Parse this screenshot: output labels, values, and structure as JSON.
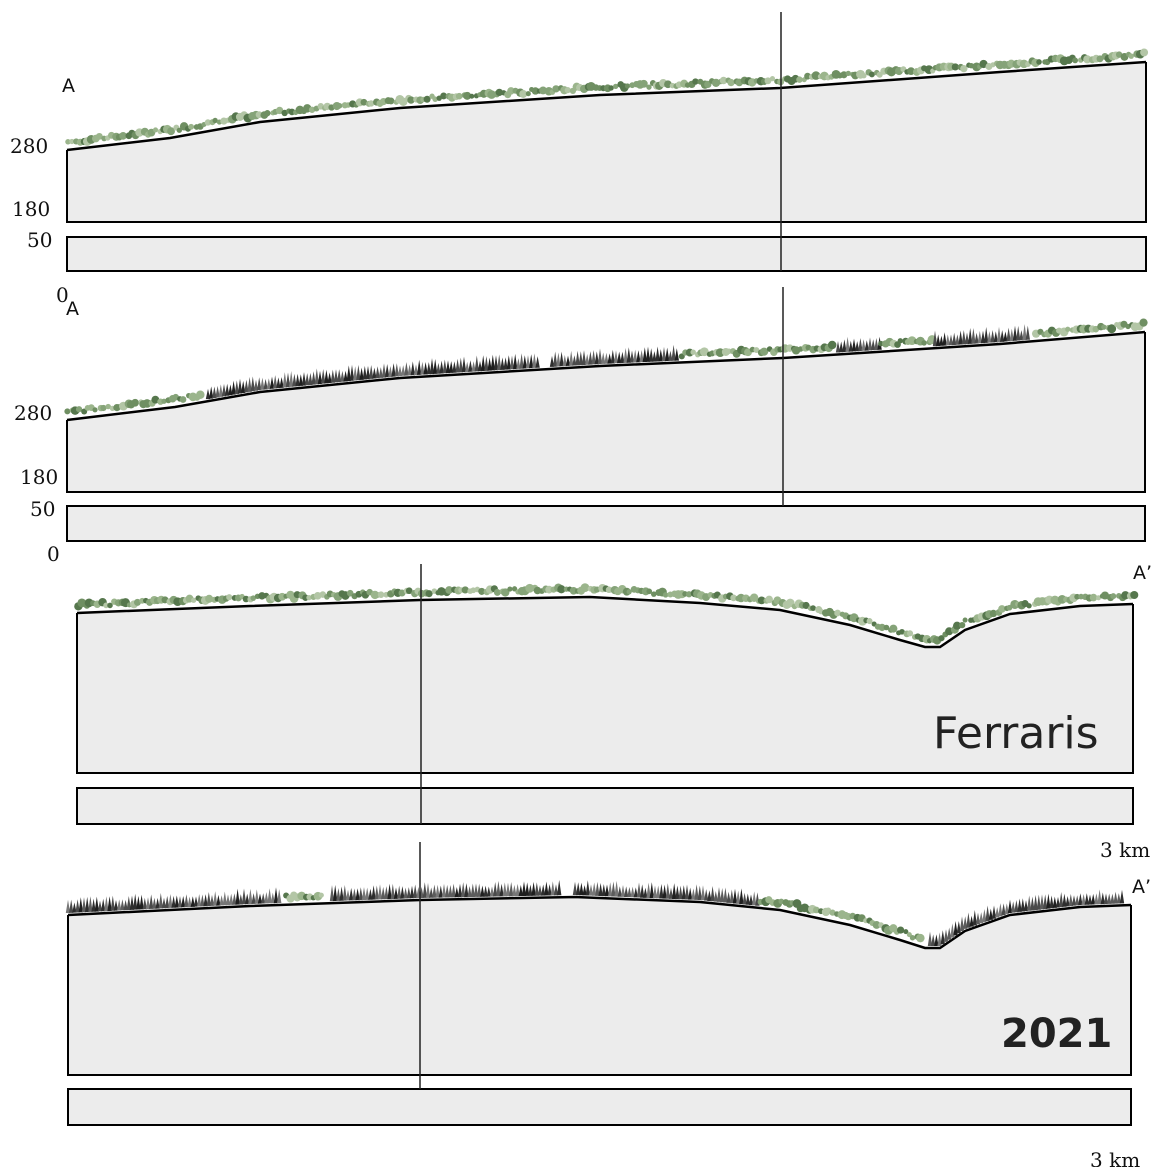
{
  "panels": [
    {
      "start_label": "A",
      "elevation_labels": [
        280,
        180,
        50,
        0
      ]
    },
    {
      "start_label": "A",
      "elevation_labels": [
        280,
        180,
        50,
        0
      ]
    },
    {
      "end_label": "A’",
      "period": "Ferraris",
      "scale": "3 km"
    },
    {
      "end_label": "A’",
      "period": "2021",
      "scale": "3 km"
    }
  ]
}
